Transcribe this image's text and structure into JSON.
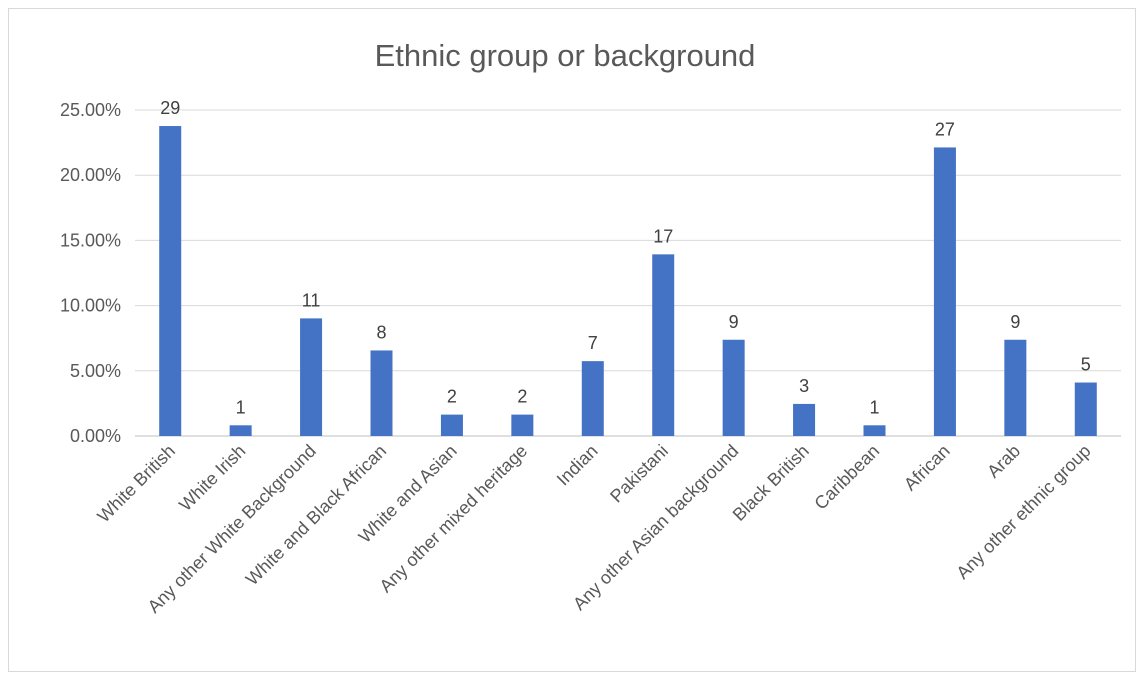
{
  "chart_data": {
    "type": "bar",
    "title": "Ethnic group or background",
    "xlabel": "",
    "ylabel": "",
    "categories": [
      "White British",
      "White Irish",
      "Any other White Background",
      "White and Black African",
      "White and Asian",
      "Any other mixed heritage",
      "Indian",
      "Pakistani",
      "Any other Asian background",
      "Black British",
      "Caribbean",
      "African",
      "Arab",
      "Any other ethnic group"
    ],
    "values": [
      23.77,
      0.82,
      9.02,
      6.56,
      1.64,
      1.64,
      5.74,
      13.93,
      7.38,
      2.46,
      0.82,
      22.13,
      7.38,
      4.1
    ],
    "data_labels": [
      "29",
      "1",
      "11",
      "8",
      "2",
      "2",
      "7",
      "17",
      "9",
      "3",
      "1",
      "27",
      "9",
      "5"
    ],
    "ylim": [
      0,
      25
    ],
    "y_ticks": [
      0,
      5,
      10,
      15,
      20,
      25
    ],
    "y_tick_labels": [
      "0.00%",
      "5.00%",
      "10.00%",
      "15.00%",
      "20.00%",
      "25.00%"
    ],
    "grid": true,
    "legend": "none",
    "colors": {
      "bar": "#4472c4",
      "text": "#595959",
      "gridline": "#d9d9d9"
    }
  }
}
